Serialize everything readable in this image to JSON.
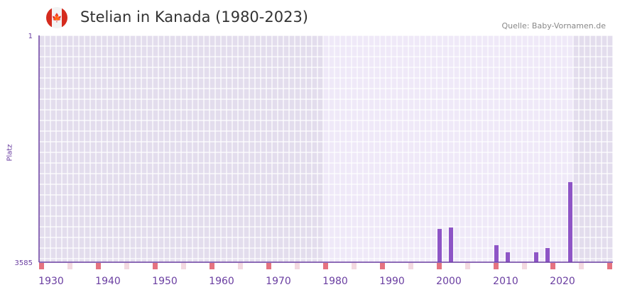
{
  "header": {
    "title": "Stelian in Kanada (1980-2023)",
    "source": "Quelle: Baby-Vornamen.de",
    "flag_icon": "canada-flag-icon"
  },
  "chart_data": {
    "type": "bar",
    "title": "Stelian in Kanada (1980-2023)",
    "ylabel": "Platz",
    "xlabel": "",
    "ylim": [
      3585,
      1
    ],
    "y_ticks": [
      "1",
      "3585"
    ],
    "xlim": [
      1928,
      2028
    ],
    "x_ticks": [
      "1930",
      "1940",
      "1950",
      "1960",
      "1970",
      "1980",
      "1990",
      "2000",
      "2010",
      "2020"
    ],
    "highlight_range": [
      1978,
      2021
    ],
    "x": [
      1998,
      2000,
      2008,
      2010,
      2015,
      2017,
      2021
    ],
    "values": [
      3059,
      3036,
      3316,
      3428,
      3428,
      3361,
      2319
    ],
    "bar_color": "#8e55c6",
    "axis_color": "#6a3ea1"
  }
}
